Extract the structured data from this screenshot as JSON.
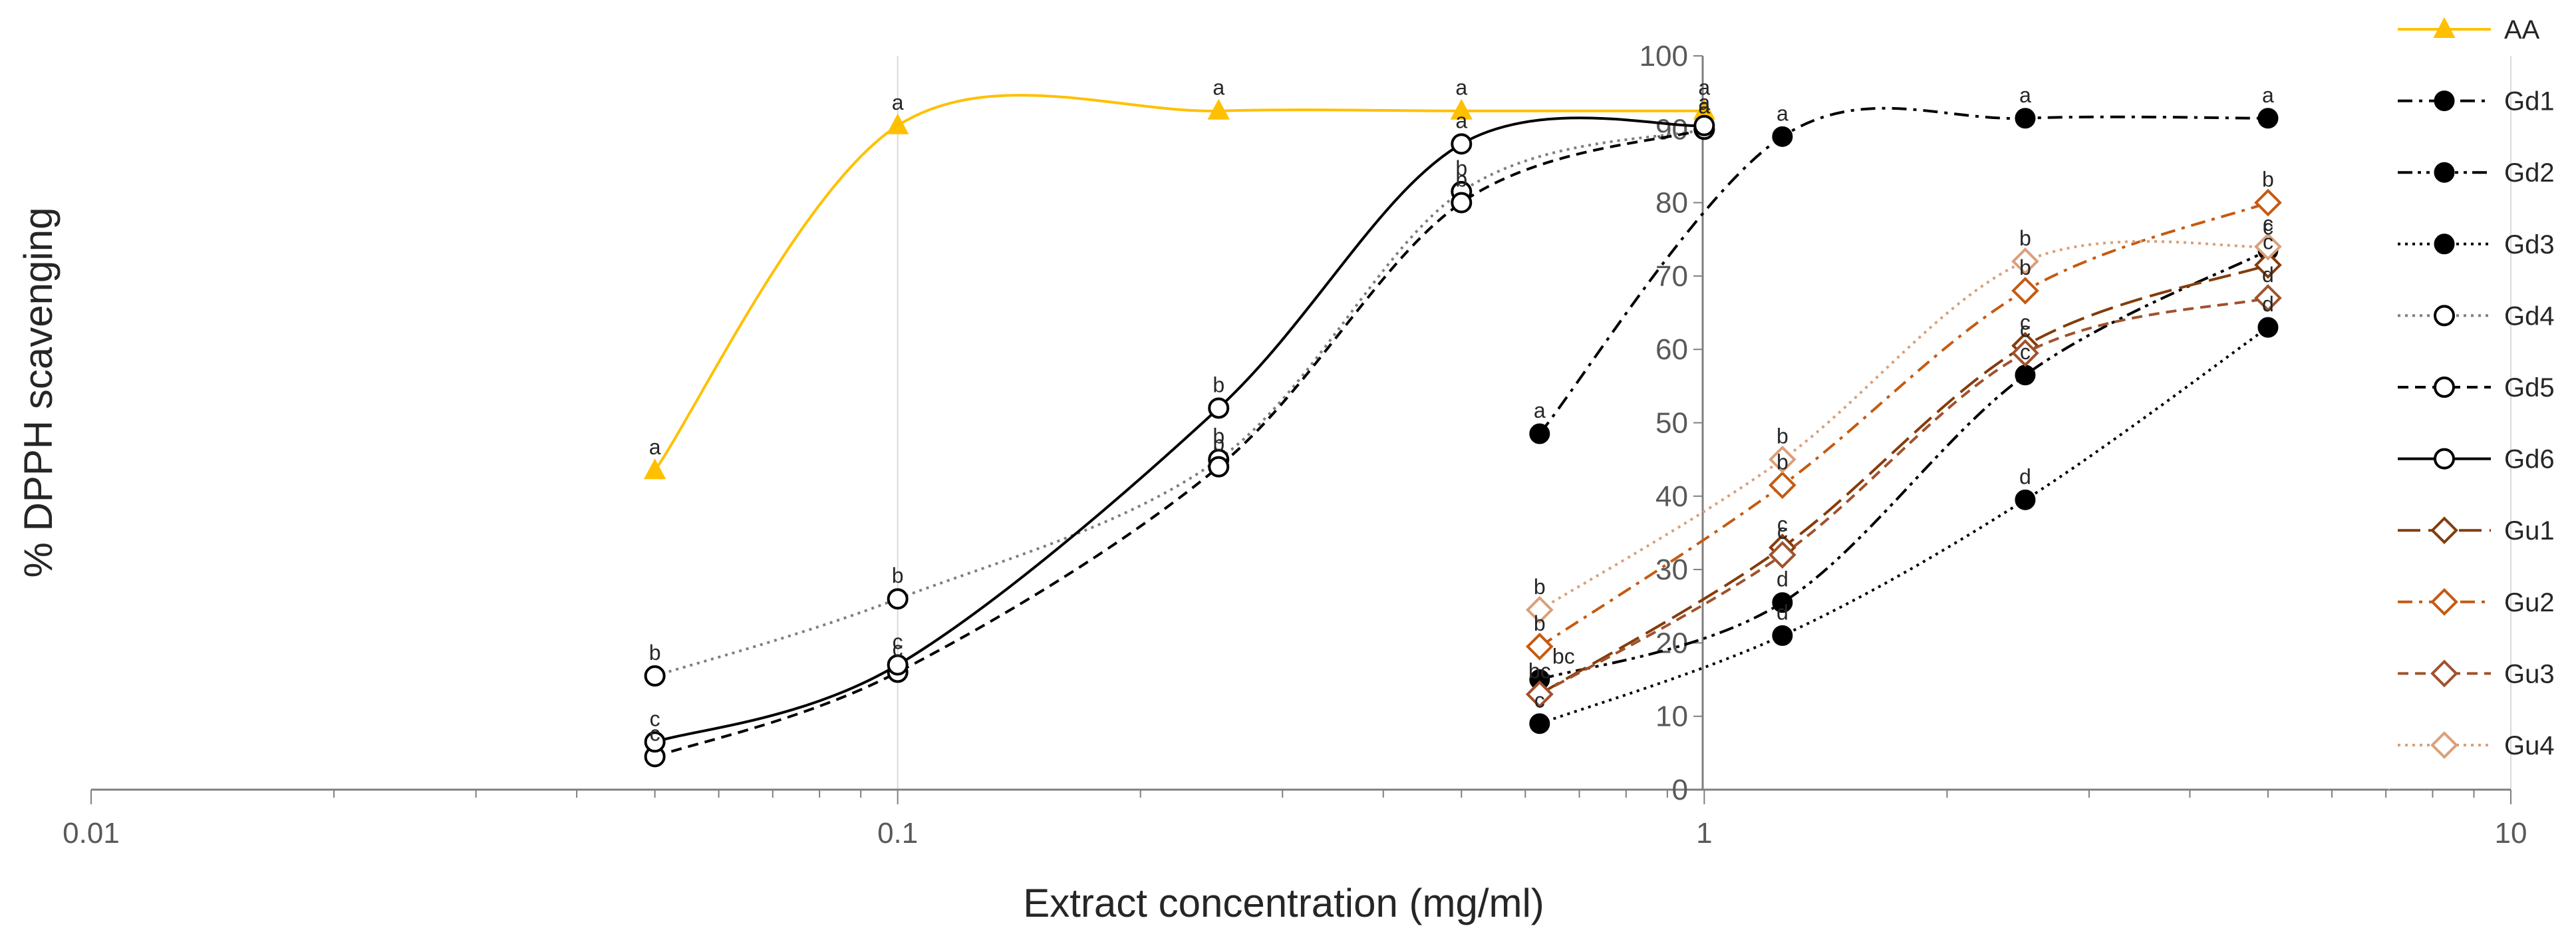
{
  "chart_data": {
    "type": "scatter",
    "xlabel": "Extract concentration  (mg/ml)",
    "ylabel": "% DPPH scavenging",
    "x_scale": "log",
    "xlim": [
      0.01,
      10
    ],
    "ylim": [
      0,
      100
    ],
    "x_ticks": [
      "0.01",
      "0.1",
      "1",
      "10"
    ],
    "y_ticks": [
      "0",
      "10",
      "20",
      "30",
      "40",
      "50",
      "60",
      "70",
      "80",
      "90",
      "100"
    ],
    "grid": "vertical major gridlines at decades; y axis crosses at x = 1",
    "legend_position": "right",
    "series": [
      {
        "name": "AA",
        "color": "#ffc000",
        "marker": "triangle-filled",
        "line": "solid",
        "x": [
          0.05,
          0.1,
          0.25,
          0.5,
          1
        ],
        "y": [
          43.5,
          90.5,
          92.5,
          92.5,
          92.5
        ],
        "labels": [
          "a",
          "a",
          "a",
          "a",
          "a"
        ]
      },
      {
        "name": "Gd1",
        "color": "#000000",
        "marker": "circle-filled",
        "line": "dashdot",
        "x": [
          0.625,
          1.25,
          2.5,
          5
        ],
        "y": [
          48.5,
          89,
          91.5,
          91.5
        ],
        "labels": [
          "a",
          "a",
          "a",
          "a"
        ]
      },
      {
        "name": "Gd2",
        "color": "#000000",
        "marker": "circle-filled",
        "line": "dashdotdot",
        "x": [
          0.625,
          1.25,
          2.5,
          5
        ],
        "y": [
          15,
          25.5,
          56.5,
          73.5
        ],
        "labels": [
          "",
          "d",
          "c",
          "c"
        ]
      },
      {
        "name": "Gd3",
        "color": "#000000",
        "marker": "circle-filled",
        "line": "dotted",
        "x": [
          0.625,
          1.25,
          2.5,
          5
        ],
        "y": [
          9,
          21,
          39.5,
          63
        ],
        "labels": [
          "c",
          "d",
          "d",
          "d"
        ]
      },
      {
        "name": "Gd4",
        "color": "#7f7f7f",
        "marker": "circle-open",
        "line": "dotted",
        "x": [
          0.05,
          0.1,
          0.25,
          0.5,
          1
        ],
        "y": [
          15.5,
          26,
          45,
          81.5,
          90
        ],
        "labels": [
          "b",
          "b",
          "b",
          "b",
          "a"
        ]
      },
      {
        "name": "Gd5",
        "color": "#000000",
        "marker": "circle-open",
        "line": "dashed",
        "x": [
          0.05,
          0.1,
          0.25,
          0.5,
          1
        ],
        "y": [
          4.5,
          16,
          44,
          80,
          90
        ],
        "labels": [
          "c",
          "c",
          "b",
          "b",
          "a"
        ]
      },
      {
        "name": "Gd6",
        "color": "#000000",
        "marker": "circle-open",
        "line": "solid",
        "x": [
          0.05,
          0.1,
          0.25,
          0.5,
          1
        ],
        "y": [
          6.5,
          17,
          52,
          88,
          90.5
        ],
        "labels": [
          "c",
          "c",
          "b",
          "a",
          "a"
        ]
      },
      {
        "name": "Gu1",
        "color": "#843c0c",
        "marker": "diamond-open",
        "line": "longdash",
        "x": [
          0.625,
          1.25,
          2.5,
          5
        ],
        "y": [
          13,
          33,
          60.5,
          71.5
        ],
        "labels": [
          "",
          "c",
          "c",
          "c"
        ]
      },
      {
        "name": "Gu2",
        "color": "#c55a11",
        "marker": "diamond-open",
        "line": "dashdot",
        "x": [
          0.625,
          1.25,
          2.5,
          5
        ],
        "y": [
          19.5,
          41.5,
          68,
          80
        ],
        "labels": [
          "b",
          "b",
          "b",
          "b"
        ]
      },
      {
        "name": "Gu3",
        "color": "#a0522d",
        "marker": "diamond-open",
        "line": "dashed",
        "x": [
          0.625,
          1.25,
          2.5,
          5
        ],
        "y": [
          13,
          32,
          59.5,
          67
        ],
        "labels": [
          "bc",
          "c",
          "c",
          "d"
        ]
      },
      {
        "name": "Gu4",
        "color": "#d9a07a",
        "marker": "diamond-open",
        "line": "dotted",
        "x": [
          0.625,
          1.25,
          2.5,
          5
        ],
        "y": [
          24.5,
          45,
          72,
          74
        ],
        "labels": [
          "b",
          "b",
          "b",
          "c"
        ]
      }
    ],
    "extra_labels": [
      {
        "text": "bc",
        "x": 0.625,
        "y": 15
      }
    ]
  }
}
